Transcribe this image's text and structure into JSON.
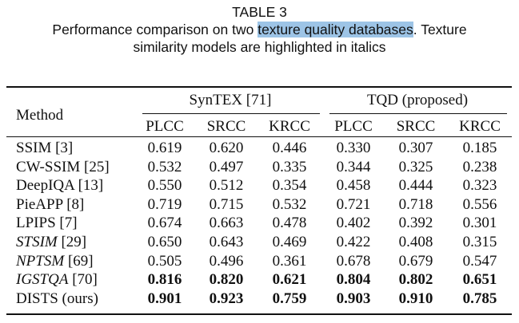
{
  "caption": {
    "label": "TABLE 3",
    "line1_before": "Performance comparison on two ",
    "line1_highlight": "texture quality databases",
    "line1_after": ". Texture",
    "line2": "similarity models are highlighted in italics"
  },
  "table": {
    "method_header": "Method",
    "groups": [
      "SynTEX [71]",
      "TQD (proposed)"
    ],
    "columns": [
      "PLCC",
      "SRCC",
      "KRCC",
      "PLCC",
      "SRCC",
      "KRCC"
    ],
    "rows": [
      {
        "name": "SSIM",
        "ref": " [3]",
        "italic": false,
        "bold": false,
        "values": [
          "0.619",
          "0.620",
          "0.446",
          "0.330",
          "0.307",
          "0.185"
        ]
      },
      {
        "name": "CW-SSIM",
        "ref": " [25]",
        "italic": false,
        "bold": false,
        "values": [
          "0.532",
          "0.497",
          "0.335",
          "0.344",
          "0.325",
          "0.238"
        ]
      },
      {
        "name": "DeepIQA",
        "ref": " [13]",
        "italic": false,
        "bold": false,
        "values": [
          "0.550",
          "0.512",
          "0.354",
          "0.458",
          "0.444",
          "0.323"
        ]
      },
      {
        "name": "PieAPP",
        "ref": " [8]",
        "italic": false,
        "bold": false,
        "values": [
          "0.719",
          "0.715",
          "0.532",
          "0.721",
          "0.718",
          "0.556"
        ]
      },
      {
        "name": "LPIPS",
        "ref": " [7]",
        "italic": false,
        "bold": false,
        "values": [
          "0.674",
          "0.663",
          "0.478",
          "0.402",
          "0.392",
          "0.301"
        ]
      },
      {
        "name": "STSIM",
        "ref": " [29]",
        "italic": true,
        "bold": false,
        "values": [
          "0.650",
          "0.643",
          "0.469",
          "0.422",
          "0.408",
          "0.315"
        ]
      },
      {
        "name": "NPTSM",
        "ref": " [69]",
        "italic": true,
        "bold": false,
        "values": [
          "0.505",
          "0.496",
          "0.361",
          "0.678",
          "0.679",
          "0.547"
        ]
      },
      {
        "name": "IGSTQA",
        "ref": " [70]",
        "italic": true,
        "bold": true,
        "values": [
          "0.816",
          "0.820",
          "0.621",
          "0.804",
          "0.802",
          "0.651"
        ]
      },
      {
        "name": "DISTS (ours)",
        "ref": "",
        "italic": false,
        "bold": true,
        "values": [
          "0.901",
          "0.923",
          "0.759",
          "0.903",
          "0.910",
          "0.785"
        ]
      }
    ]
  }
}
